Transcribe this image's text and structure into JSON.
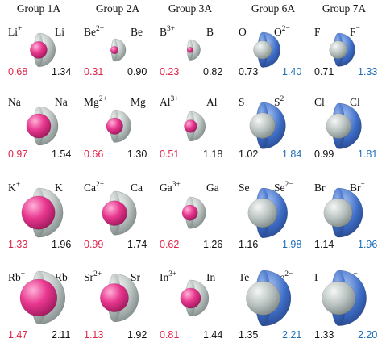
{
  "colors": {
    "cation": "#e8378f",
    "anion": "#3e6ec7",
    "neutral": "#b9c2c0",
    "cation_value": "#e0234a",
    "anion_value": "#1d6fb8",
    "neutral_value": "#111111"
  },
  "groups": [
    {
      "header": "Group 1A",
      "kind": "cation",
      "rows": [
        {
          "ion_symbol": "Li",
          "ion_charge": "+",
          "atom_symbol": "Li",
          "ion_radius": "0.68",
          "atom_radius": "1.34"
        },
        {
          "ion_symbol": "Na",
          "ion_charge": "+",
          "atom_symbol": "Na",
          "ion_radius": "0.97",
          "atom_radius": "1.54"
        },
        {
          "ion_symbol": "K",
          "ion_charge": "+",
          "atom_symbol": "K",
          "ion_radius": "1.33",
          "atom_radius": "1.96"
        },
        {
          "ion_symbol": "Rb",
          "ion_charge": "+",
          "atom_symbol": "Rb",
          "ion_radius": "1.47",
          "atom_radius": "2.11"
        }
      ]
    },
    {
      "header": "Group 2A",
      "kind": "cation",
      "rows": [
        {
          "ion_symbol": "Be",
          "ion_charge": "2+",
          "atom_symbol": "Be",
          "ion_radius": "0.31",
          "atom_radius": "0.90"
        },
        {
          "ion_symbol": "Mg",
          "ion_charge": "2+",
          "atom_symbol": "Mg",
          "ion_radius": "0.66",
          "atom_radius": "1.30"
        },
        {
          "ion_symbol": "Ca",
          "ion_charge": "2+",
          "atom_symbol": "Ca",
          "ion_radius": "0.99",
          "atom_radius": "1.74"
        },
        {
          "ion_symbol": "Sr",
          "ion_charge": "2+",
          "atom_symbol": "Sr",
          "ion_radius": "1.13",
          "atom_radius": "1.92"
        }
      ]
    },
    {
      "header": "Group 3A",
      "kind": "cation",
      "rows": [
        {
          "ion_symbol": "B",
          "ion_charge": "3+",
          "atom_symbol": "B",
          "ion_radius": "0.23",
          "atom_radius": "0.82"
        },
        {
          "ion_symbol": "Al",
          "ion_charge": "3+",
          "atom_symbol": "Al",
          "ion_radius": "0.51",
          "atom_radius": "1.18"
        },
        {
          "ion_symbol": "Ga",
          "ion_charge": "3+",
          "atom_symbol": "Ga",
          "ion_radius": "0.62",
          "atom_radius": "1.26"
        },
        {
          "ion_symbol": "In",
          "ion_charge": "3+",
          "atom_symbol": "In",
          "ion_radius": "0.81",
          "atom_radius": "1.44"
        }
      ]
    },
    {
      "header": "Group 6A",
      "kind": "anion",
      "rows": [
        {
          "atom_symbol": "O",
          "ion_symbol": "O",
          "ion_charge": "2−",
          "atom_radius": "0.73",
          "ion_radius": "1.40"
        },
        {
          "atom_symbol": "S",
          "ion_symbol": "S",
          "ion_charge": "2−",
          "atom_radius": "1.02",
          "ion_radius": "1.84"
        },
        {
          "atom_symbol": "Se",
          "ion_symbol": "Se",
          "ion_charge": "2−",
          "atom_radius": "1.16",
          "ion_radius": "1.98"
        },
        {
          "atom_symbol": "Te",
          "ion_symbol": "Te",
          "ion_charge": "2−",
          "atom_radius": "1.35",
          "ion_radius": "2.21"
        }
      ]
    },
    {
      "header": "Group 7A",
      "kind": "anion",
      "rows": [
        {
          "atom_symbol": "F",
          "ion_symbol": "F",
          "ion_charge": "−",
          "atom_radius": "0.71",
          "ion_radius": "1.33"
        },
        {
          "atom_symbol": "Cl",
          "ion_symbol": "Cl",
          "ion_charge": "−",
          "atom_radius": "0.99",
          "ion_radius": "1.81"
        },
        {
          "atom_symbol": "Br",
          "ion_symbol": "Br",
          "ion_charge": "−",
          "atom_radius": "1.14",
          "ion_radius": "1.96"
        },
        {
          "atom_symbol": "I",
          "ion_symbol": "I",
          "ion_charge": "−",
          "atom_radius": "1.33",
          "ion_radius": "2.20"
        }
      ]
    }
  ]
}
